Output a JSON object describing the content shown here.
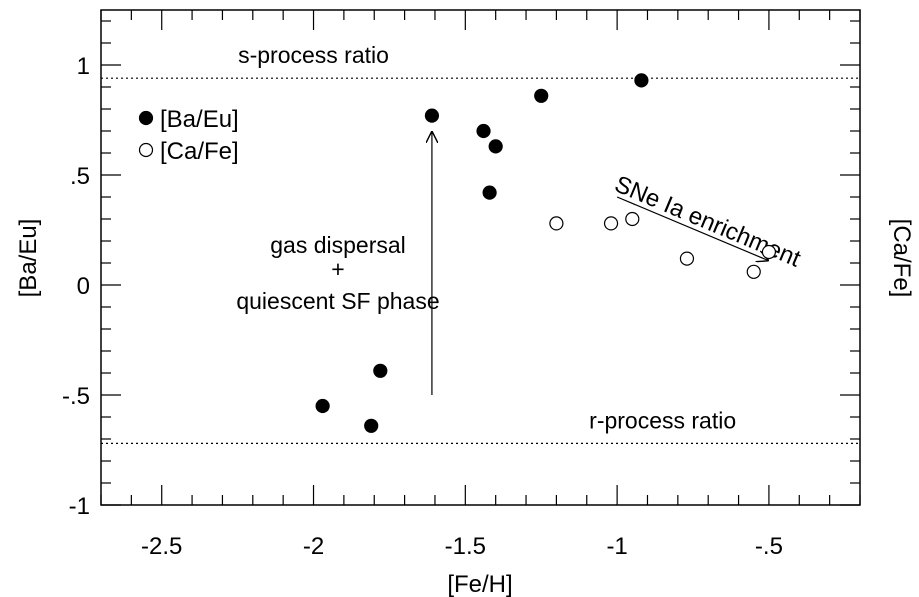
{
  "chart_data": {
    "type": "scatter",
    "xlabel": "[Fe/H]",
    "ylabel": "[Ba/Eu]",
    "ylabel_right": "[Ca/Fe]",
    "xlim": [
      -2.7,
      -0.2
    ],
    "ylim": [
      -1.0,
      1.25
    ],
    "x_ticks": [
      {
        "value": -2.5,
        "label": "-2.5"
      },
      {
        "value": -2.0,
        "label": "-2"
      },
      {
        "value": -1.5,
        "label": "-1.5"
      },
      {
        "value": -1.0,
        "label": "-1"
      },
      {
        "value": -0.5,
        "label": "-.5"
      }
    ],
    "y_ticks": [
      {
        "value": -1.0,
        "label": "-1"
      },
      {
        "value": -0.5,
        "label": "-.5"
      },
      {
        "value": 0.0,
        "label": "0"
      },
      {
        "value": 0.5,
        "label": ".5"
      },
      {
        "value": 1.0,
        "label": "1"
      }
    ],
    "series": [
      {
        "name": "[Ba/Eu]",
        "marker": "filled-circle",
        "points": [
          {
            "x": -1.97,
            "y": -0.55
          },
          {
            "x": -1.81,
            "y": -0.64
          },
          {
            "x": -1.78,
            "y": -0.39
          },
          {
            "x": -1.61,
            "y": 0.77
          },
          {
            "x": -1.44,
            "y": 0.7
          },
          {
            "x": -1.42,
            "y": 0.42
          },
          {
            "x": -1.4,
            "y": 0.63
          },
          {
            "x": -1.25,
            "y": 0.86
          },
          {
            "x": -0.92,
            "y": 0.93
          }
        ]
      },
      {
        "name": "[Ca/Fe]",
        "marker": "open-circle",
        "points": [
          {
            "x": -1.2,
            "y": 0.28
          },
          {
            "x": -1.02,
            "y": 0.28
          },
          {
            "x": -0.95,
            "y": 0.3
          },
          {
            "x": -0.77,
            "y": 0.12
          },
          {
            "x": -0.55,
            "y": 0.06
          },
          {
            "x": -0.5,
            "y": 0.15
          }
        ]
      }
    ],
    "reference_lines": [
      {
        "y": 0.94,
        "label": "s-process ratio",
        "label_x": -2.0,
        "style": "dotted"
      },
      {
        "y": -0.72,
        "label": "r-process ratio",
        "label_x": -0.85,
        "style": "dotted"
      }
    ],
    "annotations": {
      "arrow_up": {
        "x": -1.61,
        "y_from": -0.5,
        "y_to": 0.7
      },
      "gas_text": [
        "gas dispersal",
        "+",
        "quiescent SF phase"
      ],
      "arrow_diag": {
        "x_from": -1.0,
        "y_from": 0.4,
        "x_to": -0.5,
        "y_to": 0.11
      },
      "sne_text": "SNe Ia enrichment"
    },
    "legend_position": "top-left",
    "grid": false
  }
}
